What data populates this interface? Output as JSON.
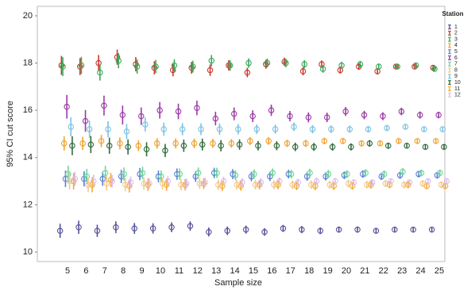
{
  "chart_data": {
    "type": "errorbar",
    "x_label": "Sample size",
    "y_label": "95% CI cut score",
    "legend_title": "Station",
    "legend_position": "right",
    "categories": [
      5,
      6,
      7,
      8,
      9,
      10,
      11,
      12,
      13,
      14,
      15,
      16,
      17,
      18,
      19,
      20,
      21,
      22,
      23,
      24,
      25
    ],
    "ylim": [
      9.6,
      20.4
    ],
    "yticks": [
      10,
      12,
      14,
      16,
      18,
      20
    ],
    "series": [
      {
        "name": "1",
        "color": "#55529a",
        "values": [
          10.9,
          11.05,
          10.9,
          11.05,
          11.0,
          11.0,
          11.05,
          11.1,
          10.85,
          10.9,
          10.95,
          10.85,
          11.0,
          10.95,
          10.9,
          10.95,
          10.95,
          10.9,
          10.95,
          10.95,
          10.95
        ],
        "errors": [
          0.3,
          0.28,
          0.26,
          0.25,
          0.23,
          0.22,
          0.21,
          0.2,
          0.19,
          0.18,
          0.17,
          0.16,
          0.15,
          0.15,
          0.14,
          0.13,
          0.13,
          0.12,
          0.12,
          0.11,
          0.11
        ]
      },
      {
        "name": "2",
        "color": "#c8382e",
        "values": [
          17.9,
          17.85,
          18.0,
          18.25,
          17.95,
          17.8,
          17.7,
          17.8,
          17.7,
          17.9,
          17.6,
          17.95,
          18.05,
          17.65,
          17.95,
          17.7,
          17.85,
          17.65,
          17.85,
          17.85,
          17.8
        ],
        "errors": [
          0.4,
          0.36,
          0.34,
          0.32,
          0.3,
          0.28,
          0.26,
          0.25,
          0.24,
          0.22,
          0.2,
          0.19,
          0.18,
          0.17,
          0.16,
          0.15,
          0.14,
          0.13,
          0.12,
          0.11,
          0.1
        ]
      },
      {
        "name": "3",
        "color": "#3aaa5c",
        "values": [
          17.85,
          17.9,
          17.6,
          18.1,
          17.85,
          17.85,
          17.9,
          17.85,
          18.1,
          17.9,
          18.0,
          18.0,
          18.0,
          17.95,
          17.75,
          17.9,
          17.95,
          17.85,
          17.85,
          17.9,
          17.75
        ],
        "errors": [
          0.4,
          0.36,
          0.34,
          0.32,
          0.3,
          0.28,
          0.26,
          0.25,
          0.24,
          0.22,
          0.2,
          0.19,
          0.18,
          0.17,
          0.16,
          0.15,
          0.14,
          0.13,
          0.12,
          0.11,
          0.1
        ]
      },
      {
        "name": "4",
        "color": "#f0a32e",
        "values": [
          14.6,
          14.6,
          14.7,
          14.6,
          14.5,
          14.6,
          14.6,
          14.6,
          14.6,
          14.6,
          14.7,
          14.7,
          14.6,
          14.6,
          14.7,
          14.7,
          14.6,
          14.6,
          14.7,
          14.7,
          14.7
        ],
        "errors": [
          0.3,
          0.28,
          0.26,
          0.25,
          0.23,
          0.22,
          0.21,
          0.2,
          0.19,
          0.18,
          0.17,
          0.16,
          0.15,
          0.15,
          0.14,
          0.13,
          0.13,
          0.12,
          0.12,
          0.11,
          0.11
        ]
      },
      {
        "name": "5",
        "color": "#5b7fd6",
        "values": [
          13.1,
          13.1,
          13.1,
          13.2,
          13.3,
          13.2,
          13.3,
          13.2,
          13.35,
          13.3,
          13.2,
          13.2,
          13.3,
          13.2,
          13.2,
          13.25,
          13.3,
          13.2,
          13.25,
          13.3,
          13.25
        ],
        "errors": [
          0.35,
          0.32,
          0.3,
          0.28,
          0.26,
          0.25,
          0.24,
          0.23,
          0.22,
          0.21,
          0.2,
          0.19,
          0.18,
          0.18,
          0.17,
          0.16,
          0.16,
          0.15,
          0.15,
          0.14,
          0.14
        ]
      },
      {
        "name": "6",
        "color": "#9a3aa6",
        "values": [
          16.15,
          15.55,
          16.2,
          15.8,
          15.75,
          16.0,
          15.95,
          16.1,
          15.65,
          15.85,
          15.75,
          16.0,
          15.75,
          15.7,
          15.7,
          15.95,
          15.8,
          15.75,
          15.95,
          15.8,
          15.8
        ],
        "errors": [
          0.5,
          0.46,
          0.42,
          0.4,
          0.37,
          0.35,
          0.33,
          0.31,
          0.29,
          0.27,
          0.25,
          0.24,
          0.22,
          0.21,
          0.2,
          0.19,
          0.18,
          0.17,
          0.16,
          0.15,
          0.14
        ]
      },
      {
        "name": "7",
        "color": "#6ed39a",
        "values": [
          13.3,
          13.2,
          13.35,
          13.3,
          13.35,
          13.2,
          13.3,
          13.35,
          13.35,
          13.25,
          13.3,
          13.35,
          13.3,
          13.35,
          13.3,
          13.3,
          13.35,
          13.3,
          13.4,
          13.35,
          13.35
        ],
        "errors": [
          0.35,
          0.32,
          0.3,
          0.28,
          0.26,
          0.25,
          0.24,
          0.23,
          0.22,
          0.21,
          0.2,
          0.19,
          0.18,
          0.18,
          0.17,
          0.16,
          0.16,
          0.15,
          0.15,
          0.14,
          0.14
        ]
      },
      {
        "name": "8",
        "color": "#f3c98a",
        "values": [
          13.0,
          12.85,
          12.9,
          12.85,
          12.9,
          12.9,
          12.85,
          12.9,
          12.85,
          12.85,
          12.85,
          12.85,
          12.85,
          12.85,
          12.85,
          12.9,
          12.85,
          12.9,
          12.85,
          12.9,
          12.85
        ],
        "errors": [
          0.35,
          0.32,
          0.3,
          0.28,
          0.26,
          0.25,
          0.24,
          0.23,
          0.22,
          0.21,
          0.2,
          0.19,
          0.18,
          0.18,
          0.17,
          0.16,
          0.16,
          0.15,
          0.15,
          0.14,
          0.14
        ]
      },
      {
        "name": "9",
        "color": "#7cc3e3",
        "values": [
          15.3,
          15.2,
          15.2,
          15.1,
          15.4,
          15.2,
          15.2,
          15.2,
          15.2,
          15.2,
          15.2,
          15.2,
          15.3,
          15.2,
          15.2,
          15.2,
          15.2,
          15.25,
          15.3,
          15.2,
          15.2
        ],
        "errors": [
          0.4,
          0.36,
          0.34,
          0.32,
          0.3,
          0.28,
          0.26,
          0.25,
          0.24,
          0.22,
          0.2,
          0.19,
          0.18,
          0.17,
          0.16,
          0.15,
          0.14,
          0.13,
          0.12,
          0.11,
          0.1
        ]
      },
      {
        "name": "10",
        "color": "#2f6b3c",
        "values": [
          14.5,
          14.55,
          14.5,
          14.45,
          14.35,
          14.3,
          14.5,
          14.55,
          14.5,
          14.55,
          14.5,
          14.5,
          14.45,
          14.45,
          14.45,
          14.45,
          14.6,
          14.5,
          14.5,
          14.45,
          14.45
        ],
        "errors": [
          0.4,
          0.36,
          0.34,
          0.32,
          0.3,
          0.28,
          0.26,
          0.25,
          0.24,
          0.22,
          0.2,
          0.19,
          0.18,
          0.17,
          0.16,
          0.15,
          0.14,
          0.13,
          0.12,
          0.11,
          0.1
        ]
      },
      {
        "name": "11",
        "color": "#f5a93a",
        "values": [
          13.0,
          12.85,
          13.05,
          12.8,
          12.85,
          12.85,
          12.85,
          12.9,
          12.8,
          12.8,
          12.85,
          12.85,
          12.8,
          12.8,
          12.8,
          12.8,
          12.85,
          12.85,
          12.85,
          12.8,
          12.8
        ],
        "errors": [
          0.35,
          0.32,
          0.3,
          0.28,
          0.26,
          0.25,
          0.24,
          0.23,
          0.22,
          0.21,
          0.2,
          0.19,
          0.18,
          0.18,
          0.17,
          0.16,
          0.16,
          0.15,
          0.15,
          0.14,
          0.14
        ]
      },
      {
        "name": "12",
        "color": "#dcbdea",
        "values": [
          13.1,
          13.0,
          13.0,
          12.95,
          12.9,
          13.0,
          12.9,
          12.95,
          13.0,
          12.95,
          12.95,
          13.0,
          12.95,
          13.0,
          13.0,
          12.95,
          12.95,
          13.0,
          12.95,
          13.0,
          13.0
        ],
        "errors": [
          0.3,
          0.28,
          0.26,
          0.25,
          0.23,
          0.22,
          0.21,
          0.2,
          0.19,
          0.18,
          0.17,
          0.16,
          0.15,
          0.15,
          0.14,
          0.13,
          0.13,
          0.12,
          0.12,
          0.11,
          0.11
        ]
      }
    ]
  }
}
